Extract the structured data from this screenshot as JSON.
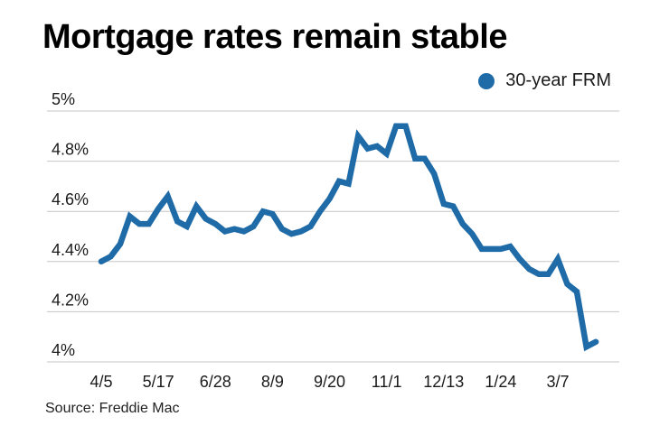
{
  "title": "Mortgage rates remain stable",
  "legend": {
    "label": "30-year FRM"
  },
  "source": "Source: Freddie Mac",
  "colors": {
    "line": "#1f6ba8",
    "grid": "#c6c6c6",
    "axis_text": "#1a1a1a",
    "title_text": "#000000"
  },
  "chart_data": {
    "type": "line",
    "title": "Mortgage rates remain stable",
    "xlabel": "",
    "ylabel": "",
    "grid": "horizontal",
    "legend_position": "top-right",
    "ylim": [
      4.0,
      5.0
    ],
    "y_tick_labels": [
      "5%",
      "4.8%",
      "4.6%",
      "4.4%",
      "4.2%",
      "4%"
    ],
    "y_tick_values": [
      5.0,
      4.8,
      4.6,
      4.4,
      4.2,
      4.0
    ],
    "x_tick_labels": [
      "4/5",
      "5/17",
      "6/28",
      "8/9",
      "9/20",
      "11/1",
      "12/13",
      "1/24",
      "3/7"
    ],
    "x_tick_indices": [
      0,
      6,
      12,
      18,
      24,
      30,
      36,
      42,
      48
    ],
    "series": [
      {
        "name": "30-year FRM",
        "color": "#1f6ba8",
        "values": [
          4.4,
          4.42,
          4.47,
          4.58,
          4.55,
          4.55,
          4.61,
          4.66,
          4.56,
          4.54,
          4.62,
          4.57,
          4.55,
          4.52,
          4.53,
          4.52,
          4.54,
          4.6,
          4.59,
          4.53,
          4.51,
          4.52,
          4.54,
          4.6,
          4.65,
          4.72,
          4.71,
          4.9,
          4.85,
          4.86,
          4.83,
          4.94,
          4.94,
          4.81,
          4.81,
          4.75,
          4.63,
          4.62,
          4.55,
          4.51,
          4.45,
          4.45,
          4.45,
          4.46,
          4.41,
          4.37,
          4.35,
          4.35,
          4.41,
          4.31,
          4.28,
          4.06,
          4.08
        ]
      }
    ]
  }
}
